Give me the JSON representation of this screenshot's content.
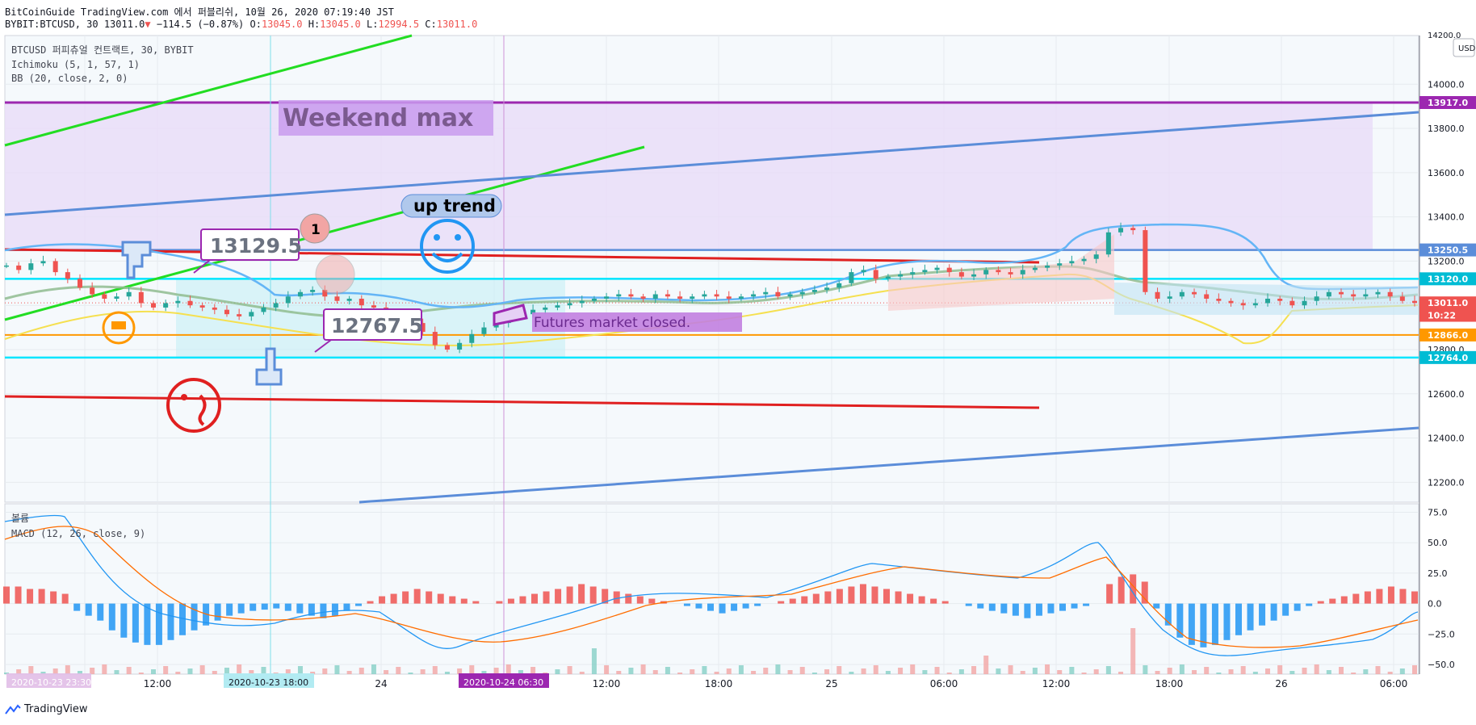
{
  "header": {
    "line1": "BitCoinGuide TradingView.com 에서 퍼블리쉬, 10월 26, 2020 07:19:40 JST",
    "symbol": "BYBIT:BTCUSD, 30",
    "last": "13011.0",
    "change": "−114.5 (−0.87%)",
    "o_label": "O:",
    "o": "13045.0",
    "h_label": "H:",
    "h": "13045.0",
    "l_label": "L:",
    "l": "12994.5",
    "c_label": "C:",
    "c": "13011.0"
  },
  "legend": {
    "line1": "BTCUSD 퍼피츄얼 컨트랙트, 30, BYBIT",
    "line2": "Ichimoku (5, 1, 57, 1)",
    "line3": "BB (20, close, 2, 0)",
    "volume": "볼륨",
    "macd": "MACD (12, 26, close, 9)"
  },
  "price_axis": {
    "currency": "USD",
    "ticks": [
      "14000.0",
      "13800.0",
      "13600.0",
      "13400.0",
      "13200.0",
      "12800.0",
      "12600.0",
      "12400.0",
      "12200.0"
    ],
    "top_partial": "14200.0",
    "labels": [
      {
        "text": "13917.0",
        "value": 13917,
        "color": "#9c27b0"
      },
      {
        "text": "13250.5",
        "value": 13250.5,
        "color": "#5b8dd9"
      },
      {
        "text": "13120.0",
        "value": 13120,
        "color": "#00bcd4"
      },
      {
        "text": "13011.0",
        "value": 13011,
        "color": "#ef5350"
      },
      {
        "text": "10:22",
        "value": 12955,
        "color": "#ef5350"
      },
      {
        "text": "12866.0",
        "value": 12866,
        "color": "#ff9800"
      },
      {
        "text": "12764.0",
        "value": 12764,
        "color": "#00bcd4"
      }
    ]
  },
  "macd_axis": {
    "ticks": [
      "75.0",
      "50.0",
      "25.0",
      "0.0",
      "−25.0",
      "−50.0"
    ]
  },
  "time_axis": {
    "ticks": [
      "12:00",
      "24",
      "12:00",
      "18:00",
      "25",
      "06:00",
      "12:00",
      "18:00",
      "26",
      "06:00"
    ],
    "hidden_ticks": [
      "06:00",
      "18:00"
    ],
    "markers": [
      {
        "text": "2020-10-23  18:00",
        "color": "#b2ebf2"
      },
      {
        "text": "2020-10-24  06:30",
        "color": "#9c27b0"
      }
    ],
    "left_marker": "2020-10-23  23:30"
  },
  "annotations": {
    "weekend_max": "Weekend max",
    "up_trend": "up trend",
    "callout_1": "13129.5",
    "callout_2": "12767.5",
    "futures": "Futures market closed.",
    "bubble": "1"
  },
  "footer": {
    "brand": "TradingView"
  },
  "chart_data": {
    "type": "candlestick",
    "ylim": [
      12110,
      14220
    ],
    "horizontal_levels": [
      13917,
      13250.5,
      13120,
      12866,
      12764
    ],
    "candles_close": [
      13180,
      13160,
      13190,
      13200,
      13150,
      13120,
      13080,
      13050,
      13030,
      13040,
      13060,
      13010,
      12990,
      13010,
      13020,
      13000,
      12990,
      12980,
      12960,
      12950,
      12970,
      12990,
      13010,
      13040,
      13060,
      13070,
      13040,
      13020,
      13030,
      13000,
      12990,
      12970,
      12940,
      12920,
      12880,
      12820,
      12800,
      12830,
      12870,
      12900,
      12920,
      12950,
      12960,
      12980,
      12990,
      13000,
      13010,
      13020,
      13030,
      13040,
      13050,
      13040,
      13030,
      13050,
      13040,
      13030,
      13040,
      13050,
      13040,
      13030,
      13040,
      13050,
      13060,
      13040,
      13050,
      13060,
      13070,
      13080,
      13100,
      13150,
      13160,
      13120,
      13130,
      13140,
      13150,
      13160,
      13170,
      13150,
      13130,
      13140,
      13160,
      13150,
      13140,
      13160,
      13170,
      13180,
      13190,
      13200,
      13210,
      13230,
      13330,
      13350,
      13340,
      13060,
      13030,
      13040,
      13060,
      13050,
      13030,
      13020,
      13010,
      13000,
      13010,
      13030,
      13020,
      13000,
      13020,
      13040,
      13060,
      13050,
      13040,
      13050,
      13060,
      13040,
      13020,
      13011
    ],
    "macd": {
      "ylim": [
        -58,
        82
      ],
      "zero": 0
    }
  }
}
